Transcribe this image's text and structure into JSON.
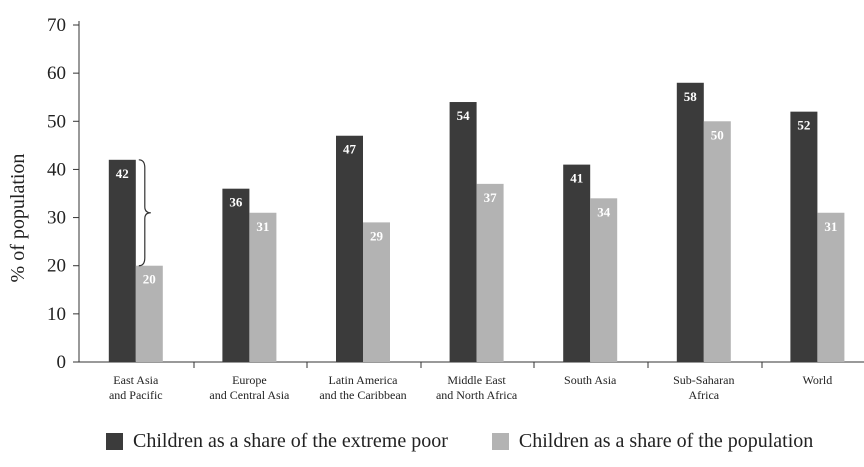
{
  "chart_data": {
    "type": "bar",
    "ylabel": "% of population",
    "ylim": [
      0,
      70
    ],
    "yticks": [
      0,
      10,
      20,
      30,
      40,
      50,
      60,
      70
    ],
    "grid": false,
    "legend_position": "bottom",
    "categories": [
      [
        "East Asia",
        "and Pacific"
      ],
      [
        "Europe",
        "and Central Asia"
      ],
      [
        "Latin America",
        "and the Caribbean"
      ],
      [
        "Middle East",
        "and North Africa"
      ],
      [
        "South Asia"
      ],
      [
        "Sub-Saharan",
        "Africa"
      ],
      [
        "World"
      ]
    ],
    "series": [
      {
        "name": "Children as a share of the extreme poor",
        "color": "#3b3b3b",
        "values": [
          42,
          36,
          47,
          54,
          41,
          58,
          52
        ]
      },
      {
        "name": "Children as a share of the population",
        "color": "#b3b3b3",
        "values": [
          20,
          31,
          29,
          37,
          34,
          50,
          31
        ]
      }
    ],
    "annotation": {
      "type": "brace",
      "category_index": 0
    }
  }
}
